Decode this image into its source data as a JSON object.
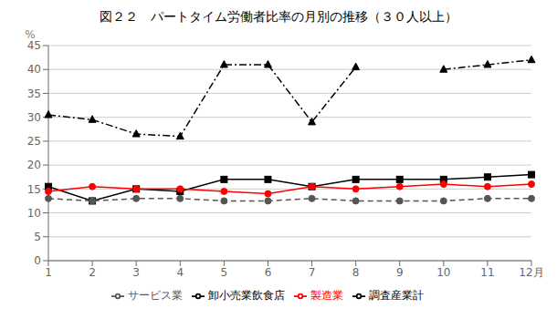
{
  "chart_data": {
    "type": "line",
    "title": "図２２　パートタイム労働者比率の月別の推移（３０人以上）",
    "ylabel": "%",
    "categories": [
      "1",
      "2",
      "3",
      "4",
      "5",
      "6",
      "7",
      "8",
      "9",
      "10",
      "11",
      "12月"
    ],
    "series": [
      {
        "name": "調査産業計",
        "color": "#000000",
        "marker": "square",
        "line_style": "solid",
        "values": [
          15.5,
          12.5,
          15.0,
          14.5,
          17.0,
          17.0,
          15.5,
          17.0,
          17.0,
          17.0,
          17.5,
          18.0
        ]
      },
      {
        "name": "製造業",
        "color": "#ff0000",
        "marker": "circle",
        "line_style": "solid",
        "values": [
          14.5,
          15.5,
          15.0,
          15.0,
          14.5,
          14.0,
          15.5,
          15.0,
          15.5,
          16.0,
          15.5,
          16.0
        ]
      },
      {
        "name": "卸小売業飲食店",
        "color": "#000000",
        "marker": "triangle",
        "line_style": "dashdot",
        "values": [
          30.5,
          29.5,
          26.5,
          26.0,
          41.0,
          41.0,
          29.0,
          40.5,
          null,
          40.0,
          41.0,
          42.0
        ]
      },
      {
        "name": "サービス業",
        "color": "#555555",
        "marker": "circle",
        "line_style": "dashed",
        "values": [
          13.0,
          12.5,
          13.0,
          13.0,
          12.5,
          12.5,
          13.0,
          12.5,
          12.5,
          12.5,
          13.0,
          13.0
        ]
      }
    ],
    "ylim": [
      0,
      45
    ],
    "yticks": [
      0,
      5,
      10,
      15,
      20,
      25,
      30,
      35,
      40,
      45
    ],
    "grid": true,
    "legend": "bottom"
  }
}
